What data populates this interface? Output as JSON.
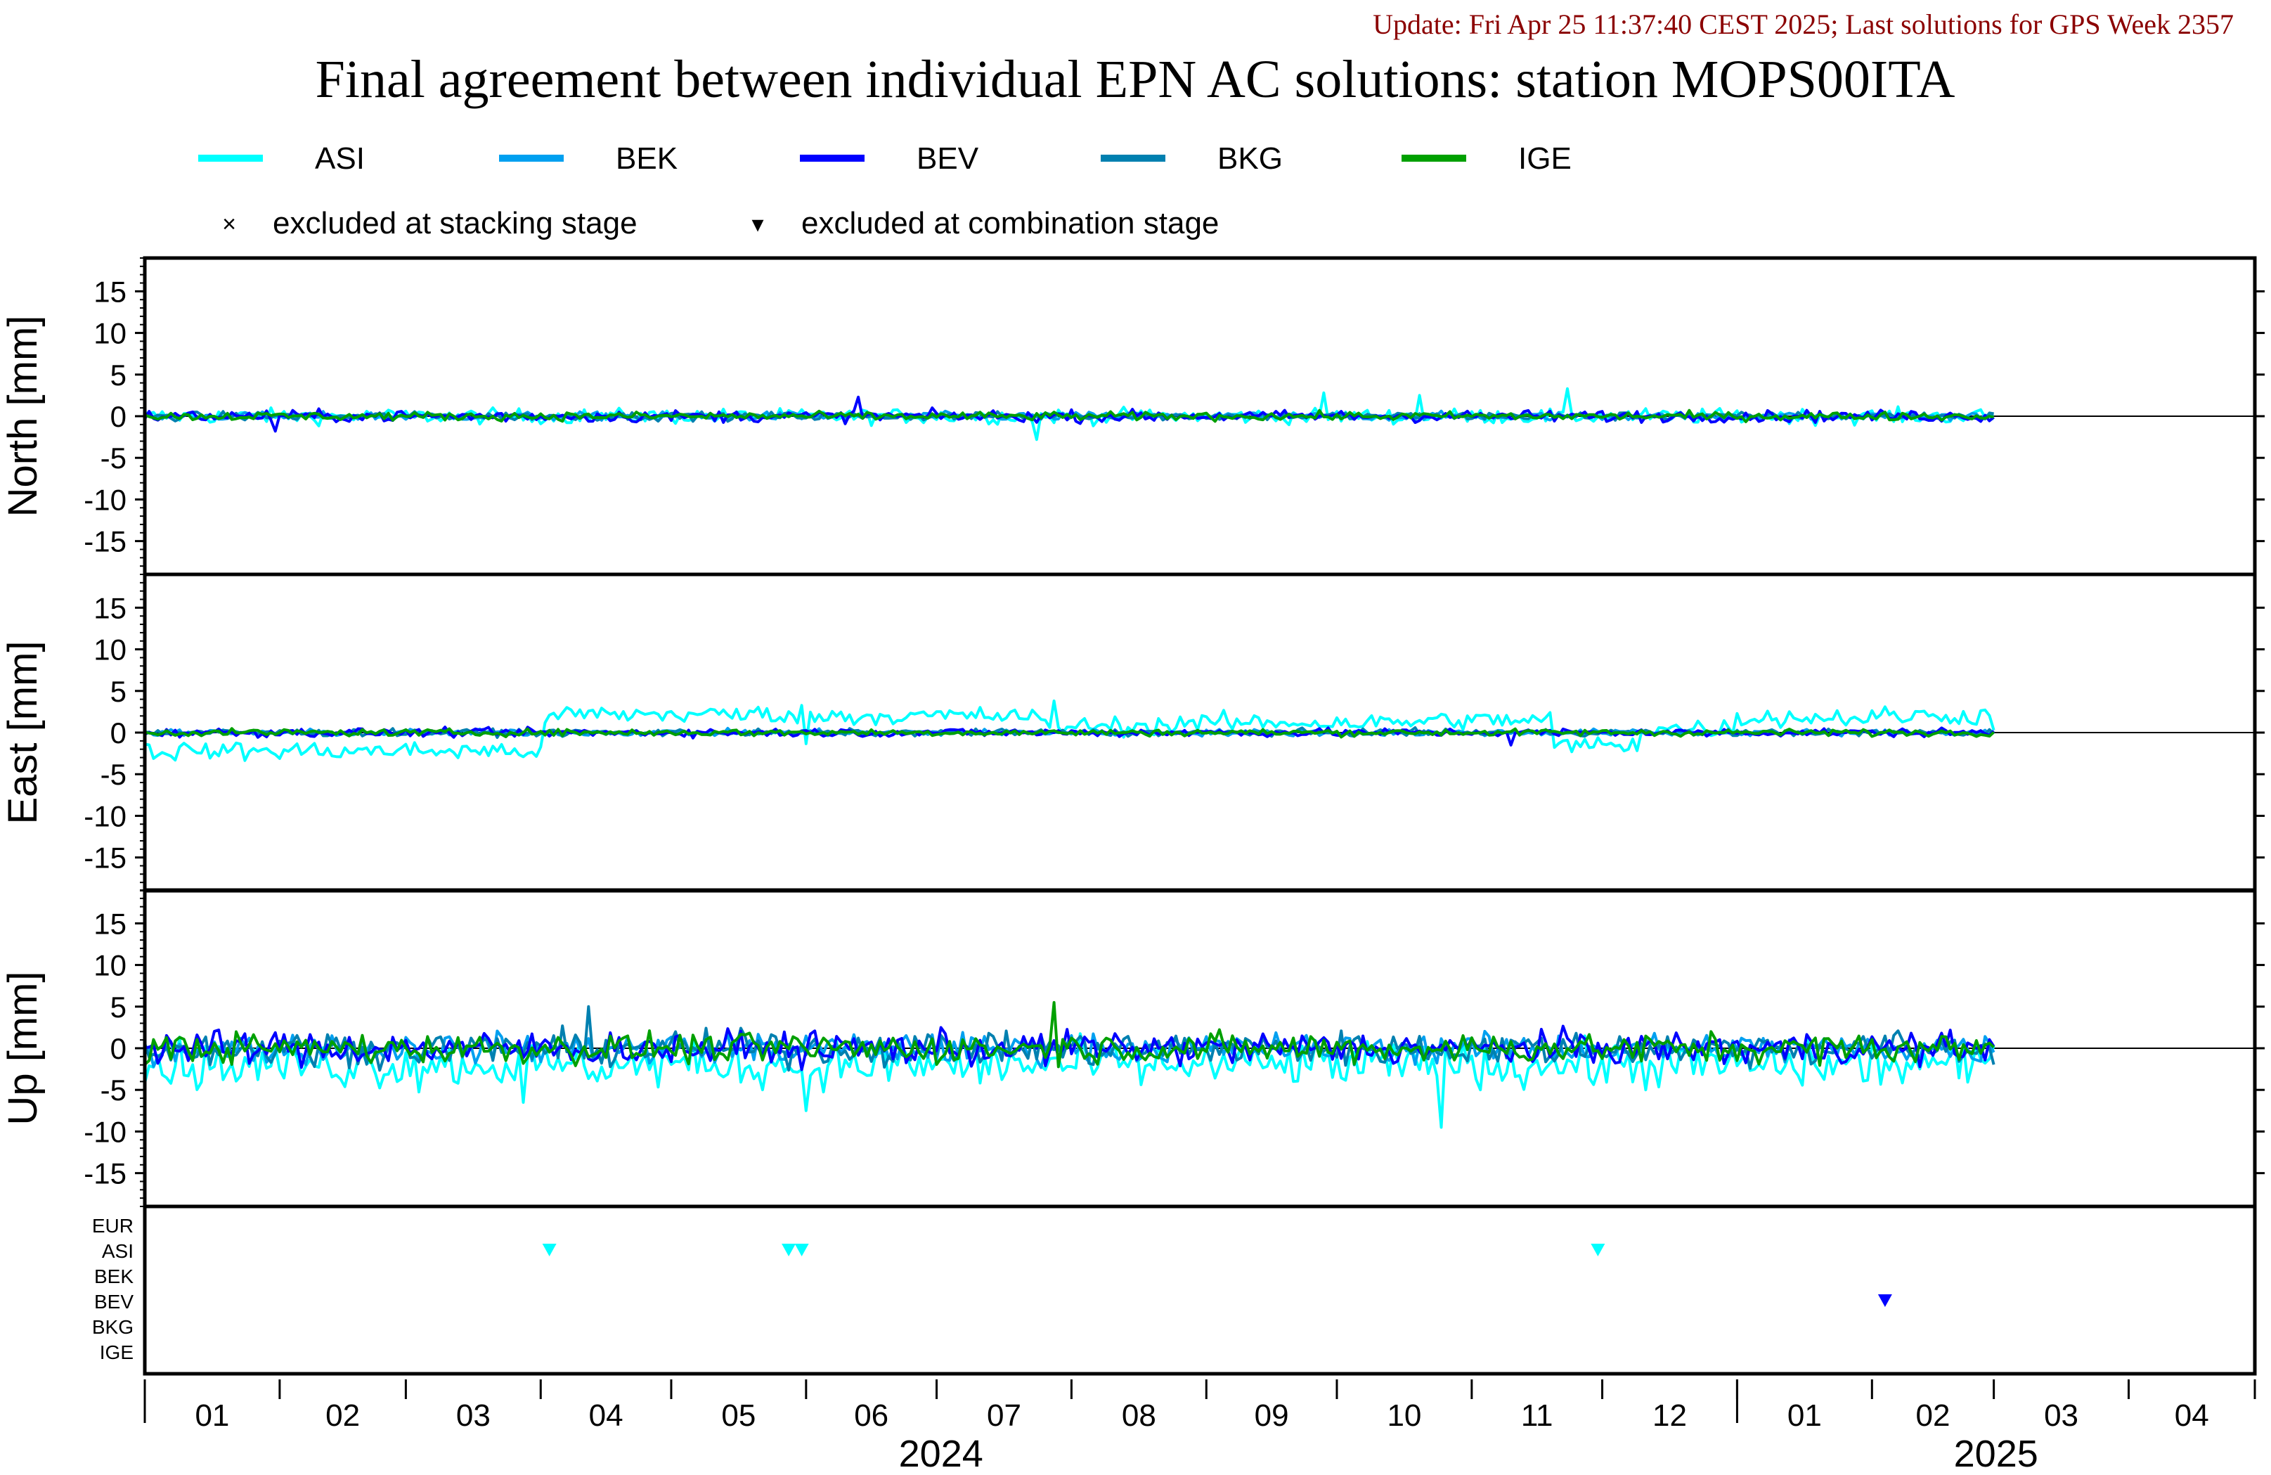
{
  "header": {
    "update": "Update: Fri Apr 25 11:37:40 CEST 2025; Last solutions for GPS Week 2357",
    "title": "Final agreement between individual EPN AC solutions: station MOPS00ITA"
  },
  "colors": {
    "ASI": "#00ffff",
    "BEK": "#00a0f0",
    "BEV": "#0000ff",
    "BKG": "#0080b0",
    "IGE": "#00a000",
    "EUR": "#000000",
    "update_text": "#8b0000"
  },
  "legend": {
    "series": [
      "ASI",
      "BEK",
      "BEV",
      "BKG",
      "IGE"
    ],
    "markers": [
      {
        "symbol": "×",
        "label": "excluded at stacking stage"
      },
      {
        "symbol": "▾",
        "label": "excluded at combination stage"
      }
    ]
  },
  "chart_data": {
    "type": "line",
    "panels": [
      {
        "ylabel": "North [mm]",
        "ylim": [
          -19,
          19
        ],
        "yticks": [
          15,
          10,
          5,
          0,
          -5,
          -10,
          -15
        ]
      },
      {
        "ylabel": "East [mm]",
        "ylim": [
          -19,
          19
        ],
        "yticks": [
          15,
          10,
          5,
          0,
          -5,
          -10,
          -15
        ]
      },
      {
        "ylabel": "Up [mm]",
        "ylim": [
          -19,
          19
        ],
        "yticks": [
          15,
          10,
          5,
          0,
          -5,
          -10,
          -15
        ]
      }
    ],
    "x_range": [
      "2024-01-01",
      "2025-04-30"
    ],
    "data_end": "2025-03-01",
    "month_labels": [
      "01",
      "02",
      "03",
      "04",
      "05",
      "06",
      "07",
      "08",
      "09",
      "10",
      "11",
      "12",
      "01",
      "02",
      "03",
      "04"
    ],
    "years": [
      {
        "label": "2024",
        "start": "2024-01-01",
        "end": "2025-01-01"
      },
      {
        "label": "2025",
        "start": "2025-01-01",
        "end": "2025-04-30"
      }
    ],
    "series": [
      "ASI",
      "BEK",
      "BEV",
      "BKG",
      "IGE"
    ],
    "note": "Daily residuals scatter of roughly ±1 mm (North), ±1 mm (East, ASI offset −2 to +3 mm), ±3 mm (Up) around zero.",
    "offsets": {
      "East": {
        "ASI": [
          {
            "x0": "2024-01-01",
            "x1": "2024-04-02",
            "y": -2.2
          },
          {
            "x0": "2024-04-03",
            "x1": "2024-06-01",
            "y": 2.2
          },
          {
            "x0": "2024-06-01",
            "x1": "2024-06-02",
            "y": -1.5
          },
          {
            "x0": "2024-06-02",
            "x1": "2024-07-25",
            "y": 2.0
          },
          {
            "x0": "2024-07-25",
            "x1": "2024-08-25",
            "y": 0.8
          },
          {
            "x0": "2024-08-25",
            "x1": "2024-10-20",
            "y": 1.2
          },
          {
            "x0": "2024-10-20",
            "x1": "2024-11-20",
            "y": 1.5
          },
          {
            "x0": "2024-11-20",
            "x1": "2024-12-10",
            "y": -1.5
          },
          {
            "x0": "2024-12-10",
            "x1": "2025-01-01",
            "y": 0.5
          },
          {
            "x0": "2025-01-01",
            "x1": "2025-02-01",
            "y": 1.8
          },
          {
            "x0": "2025-02-01",
            "x1": "2025-03-01",
            "y": 2.0
          }
        ]
      },
      "Up": {
        "ASI": [
          {
            "x0": "2024-01-01",
            "x1": "2025-03-01",
            "y": -2.0
          }
        ]
      }
    },
    "spikes": [
      {
        "panel": "North",
        "series": "BEV",
        "date": "2024-06-13",
        "value": 2.3
      },
      {
        "panel": "North",
        "series": "BEV",
        "date": "2024-01-31",
        "value": -1.8
      },
      {
        "panel": "North",
        "series": "ASI",
        "date": "2024-07-24",
        "value": -2.8
      },
      {
        "panel": "North",
        "series": "ASI",
        "date": "2024-09-28",
        "value": 2.8
      },
      {
        "panel": "North",
        "series": "ASI",
        "date": "2024-10-20",
        "value": 2.5
      },
      {
        "panel": "North",
        "series": "ASI",
        "date": "2024-11-23",
        "value": 3.3
      },
      {
        "panel": "East",
        "series": "ASI",
        "date": "2024-07-28",
        "value": 3.8
      },
      {
        "panel": "East",
        "series": "BEV",
        "date": "2024-11-10",
        "value": -1.5
      },
      {
        "panel": "Up",
        "series": "BKG",
        "date": "2024-04-12",
        "value": 5.0
      },
      {
        "panel": "Up",
        "series": "IGE",
        "date": "2024-07-28",
        "value": 5.5
      },
      {
        "panel": "Up",
        "series": "ASI",
        "date": "2024-10-25",
        "value": -9.5
      },
      {
        "panel": "Up",
        "series": "ASI",
        "date": "2024-06-01",
        "value": -7.5
      },
      {
        "panel": "Up",
        "series": "ASI",
        "date": "2024-03-28",
        "value": -6.5
      }
    ],
    "exclusion_panel": {
      "row_labels": [
        "EUR",
        "ASI",
        "BEK",
        "BEV",
        "BKG",
        "IGE"
      ],
      "markers": [
        {
          "row": "ASI",
          "date": "2024-04-03"
        },
        {
          "row": "ASI",
          "date": "2024-05-28"
        },
        {
          "row": "ASI",
          "date": "2024-05-31"
        },
        {
          "row": "ASI",
          "date": "2024-11-30"
        },
        {
          "row": "BEV",
          "date": "2025-02-04"
        }
      ]
    }
  }
}
